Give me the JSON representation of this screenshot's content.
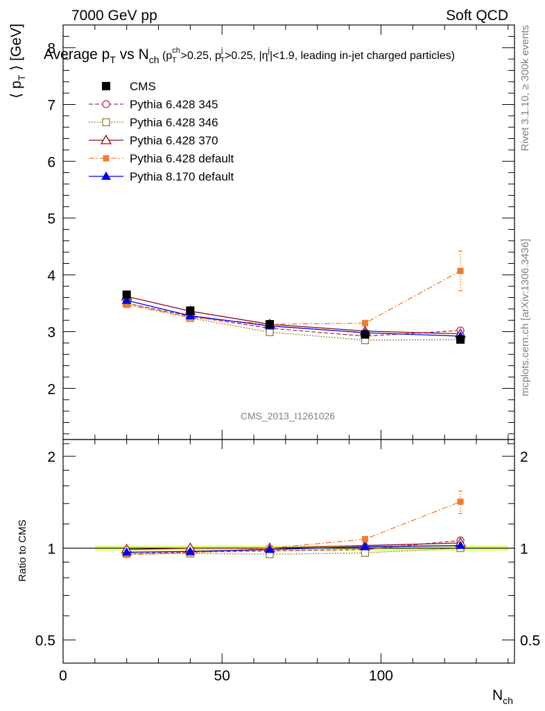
{
  "header": {
    "left": "7000 GeV pp",
    "right": "Soft QCD",
    "side_top": "Rivet 3.1.10, ≥ 300k events",
    "side_bottom": "mcplots.cern.ch [arXiv:1306.3436]",
    "analysis_id": "CMS_2013_I1261026"
  },
  "title": {
    "main": "Average p",
    "main_sub": "T",
    "vs": " vs N",
    "vs_sub": "ch",
    "cuts": " (p",
    "cuts_sup1": "ch",
    "cuts_sub1": "T",
    "cuts2": ">0.25, p",
    "cuts_sup2": "j",
    "cuts_sub2": "T",
    "cuts3": ">0.25, |η",
    "cuts_sup3": "j",
    "cuts4": "|<1.9, leading in-jet charged particles)"
  },
  "axes": {
    "ylabel_main": "⟨ p",
    "ylabel_sub": "T",
    "ylabel_tail": " ⟩ [GeV]",
    "ylabel_ratio": "Ratio to CMS",
    "xlabel": "N",
    "xlabel_sub": "ch",
    "xlim": [
      0,
      142
    ],
    "ylim_main": [
      1.1,
      8.4
    ],
    "ylim_ratio": [
      0.42,
      2.27
    ],
    "xticks": [
      0,
      50,
      100
    ],
    "xtick_labels": [
      "0",
      "50",
      "100"
    ],
    "yticks_main": [
      2,
      3,
      4,
      5,
      6,
      7,
      8
    ],
    "ytick_labels_main": [
      "2",
      "3",
      "4",
      "5",
      "6",
      "7",
      "8"
    ],
    "yticks_ratio": [
      0.5,
      1,
      2
    ],
    "ytick_labels_ratio": [
      "0.5",
      "1",
      "2"
    ]
  },
  "chart_data": {
    "type": "line",
    "x": [
      20,
      40,
      65,
      95,
      125
    ],
    "legend_position": "top-left",
    "series": [
      {
        "name": "CMS",
        "color": "#000000",
        "marker": "square-filled",
        "line": "none",
        "values": [
          3.65,
          3.37,
          3.13,
          2.95,
          2.86
        ]
      },
      {
        "name": "Pythia 6.428 345",
        "color": "#b03050",
        "marker": "circle-open",
        "line": "dashed",
        "values": [
          3.5,
          3.27,
          3.06,
          2.92,
          3.02
        ]
      },
      {
        "name": "Pythia 6.428 346",
        "color": "#9b7a2e",
        "marker": "square-open",
        "line": "dotted",
        "values": [
          3.5,
          3.24,
          2.99,
          2.85,
          2.86
        ]
      },
      {
        "name": "Pythia 6.428 370",
        "color": "#8b1020",
        "marker": "triangle-open",
        "line": "solid",
        "values": [
          3.62,
          3.36,
          3.13,
          3.01,
          2.96
        ]
      },
      {
        "name": "Pythia 6.428 default",
        "color": "#f07d30",
        "marker": "square-filled-small",
        "line": "dashdot",
        "values": [
          3.47,
          3.25,
          3.13,
          3.15,
          4.07
        ],
        "errors": [
          0.03,
          0.03,
          0.03,
          0.05,
          0.35
        ]
      },
      {
        "name": "Pythia 8.170 default",
        "color": "#0000ee",
        "marker": "triangle-filled",
        "line": "solid",
        "values": [
          3.55,
          3.28,
          3.1,
          2.98,
          2.92
        ]
      }
    ],
    "ratio": {
      "band_color": "#ccff66",
      "series": [
        {
          "name": "Pythia 6.428 345",
          "values": [
            0.96,
            0.97,
            0.98,
            0.99,
            1.06
          ]
        },
        {
          "name": "Pythia 6.428 346",
          "values": [
            0.96,
            0.96,
            0.955,
            0.965,
            1.0
          ]
        },
        {
          "name": "Pythia 6.428 370",
          "values": [
            0.99,
            1.0,
            1.0,
            1.02,
            1.04
          ]
        },
        {
          "name": "Pythia 6.428 default",
          "values": [
            0.95,
            0.965,
            1.0,
            1.07,
            1.42
          ],
          "errors": [
            0.01,
            0.01,
            0.01,
            0.015,
            0.12
          ]
        },
        {
          "name": "Pythia 8.170 default",
          "values": [
            0.97,
            0.975,
            0.99,
            1.01,
            1.02
          ]
        }
      ]
    }
  }
}
